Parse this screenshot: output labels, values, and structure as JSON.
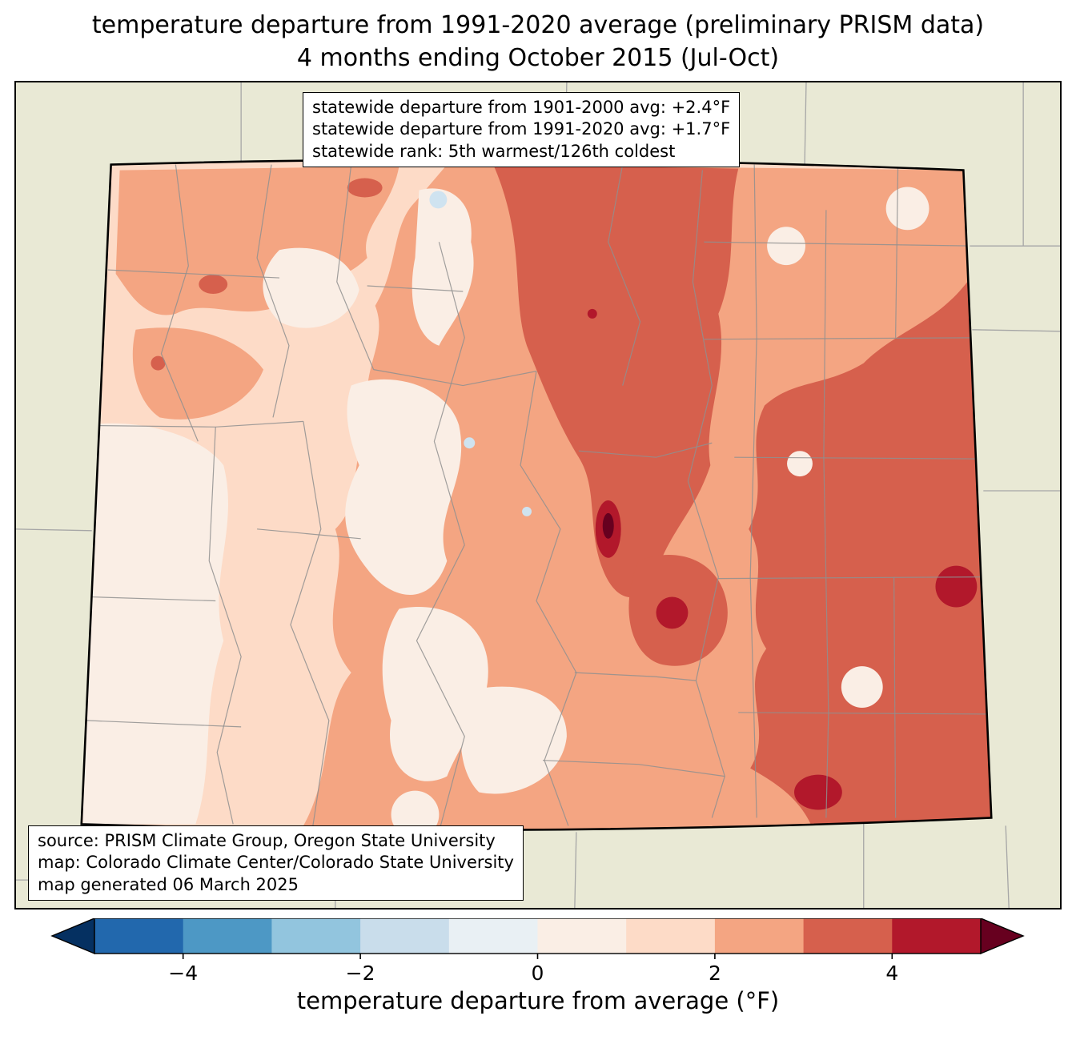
{
  "title": {
    "line1": "temperature departure from 1991-2020 average (preliminary PRISM data)",
    "line2": "4 months ending October 2015 (Jul-Oct)"
  },
  "stats_box": {
    "line1": "statewide departure from 1901-2000 avg: +2.4°F",
    "line2": "statewide departure from 1991-2020 avg: +1.7°F",
    "line3": "statewide rank: 5th warmest/126th coldest"
  },
  "source_box": {
    "line1": "source: PRISM Climate Group, Oregon State University",
    "line2": "map: Colorado Climate Center/Colorado State University",
    "line3": "map generated 06 March 2025"
  },
  "colorbar": {
    "label": "temperature departure from average (°F)",
    "vmin": -5,
    "vmax": 5,
    "tick_values": [
      -4,
      -2,
      0,
      2,
      4
    ],
    "tick_labels": [
      "−4",
      "−2",
      "0",
      "2",
      "4"
    ],
    "segment_colors": [
      "#2268ad",
      "#4d98c5",
      "#92c5de",
      "#c9ddeb",
      "#e9f0f4",
      "#faeee5",
      "#fddbc7",
      "#f4a582",
      "#d6604d",
      "#b2182b"
    ],
    "arrow_left_color": "#053061",
    "arrow_right_color": "#67001f"
  },
  "map": {
    "region_name": "Colorado",
    "colors": {
      "bg": "#e9e9d5",
      "pale": "#faeee5",
      "peach": "#fddbc7",
      "salmon": "#f4a582",
      "red": "#d6604d",
      "darkred": "#b2182b",
      "darkest": "#67001f",
      "paleblue": "#cfe3f0",
      "county_line": "#8f8f8f",
      "neighbor_line": "#a6a6a6"
    }
  }
}
